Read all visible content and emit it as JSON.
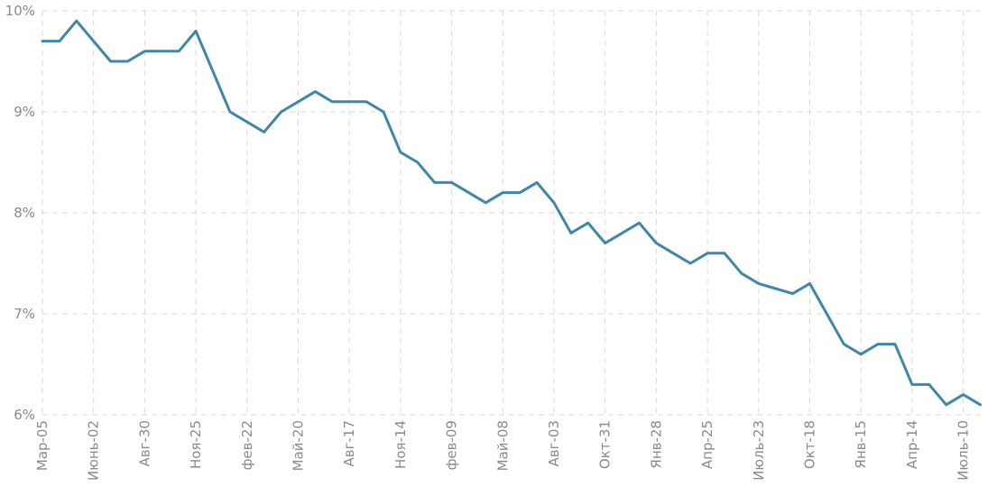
{
  "chart_data": {
    "type": "line",
    "title": "",
    "xlabel": "",
    "ylabel": "",
    "grid": true,
    "legend": "none",
    "ylim": [
      6,
      10
    ],
    "yticks": [
      6,
      7,
      8,
      9,
      10
    ],
    "ytick_labels": [
      "6%",
      "7%",
      "8%",
      "9%",
      "10%"
    ],
    "xtick_labels": [
      "Мар-05",
      "Июнь-02",
      "Авг-30",
      "Ноя-25",
      "фев-22",
      "Май-20",
      "Авг-17",
      "Ноя-14",
      "фев-09",
      "Май-08",
      "Авг-03",
      "Окт-31",
      "Янв-28",
      "Апр-25",
      "Июль-23",
      "Окт-18",
      "Янв-15",
      "Апр-14",
      "Июль-10"
    ],
    "series": [
      {
        "color": "#3d87ab",
        "values": [
          9.7,
          9.7,
          9.9,
          9.7,
          9.5,
          9.5,
          9.6,
          9.6,
          9.6,
          9.8,
          9.4,
          9.0,
          8.9,
          8.8,
          9.0,
          9.1,
          9.2,
          9.1,
          9.1,
          9.1,
          9.0,
          8.6,
          8.5,
          8.3,
          8.3,
          8.2,
          8.1,
          8.2,
          8.2,
          8.3,
          8.1,
          7.8,
          7.9,
          7.7,
          7.8,
          7.9,
          7.7,
          7.6,
          7.5,
          7.6,
          7.6,
          7.4,
          7.3,
          7.25,
          7.2,
          7.3,
          7.0,
          6.7,
          6.6,
          6.7,
          6.7,
          6.3,
          6.3,
          6.1,
          6.2,
          6.1
        ]
      }
    ]
  }
}
